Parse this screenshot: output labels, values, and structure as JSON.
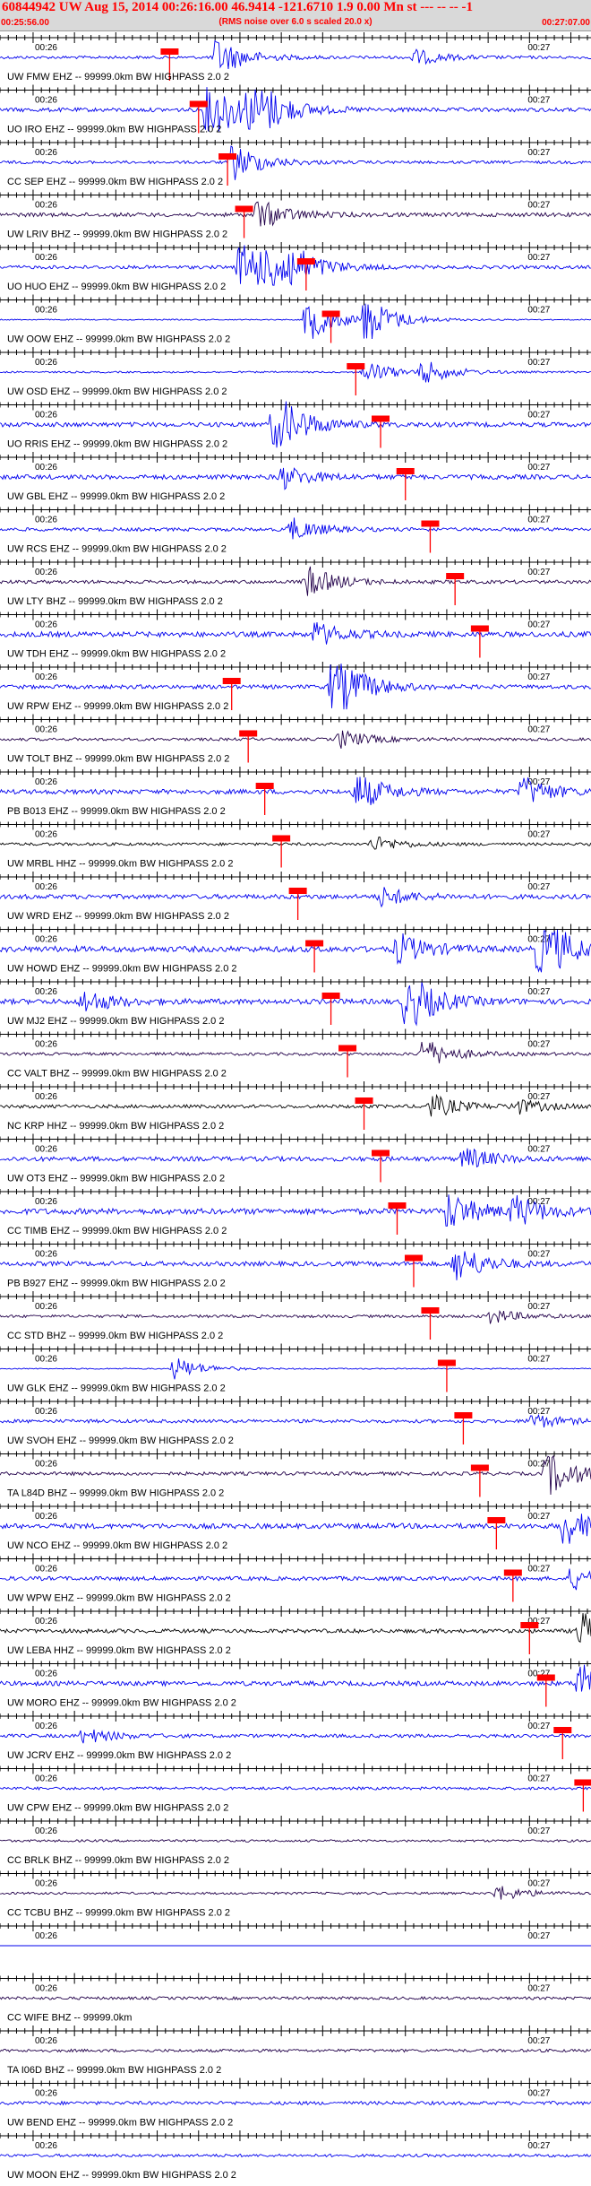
{
  "header": {
    "title": "60844942 UW Aug 15, 2014 00:26:16.00   46.9414 -121.6710  1.9 0.00 Mn st --- -- --  -1",
    "subtitle": "(RMS noise over 6.0 s scaled 20.0 x)",
    "start_time": "00:25:56.00",
    "end_time": "00:27:07.00"
  },
  "colors": {
    "trace_blue": "#0000ee",
    "trace_dark": "#22004a",
    "trace_black": "#000000",
    "pick_red": "#ff0000",
    "header_bg": "#d9d9d9"
  },
  "chart_data": {
    "type": "line",
    "title": "60844942 UW Aug 15, 2014 00:26:16.00   46.9414 -121.6710  1.9 0.00 Mn st --- -- --  -1",
    "subtitle": "(RMS noise over 6.0 s scaled 20.0 x)",
    "x_start": "00:25:56.00",
    "x_end": "00:27:07.00",
    "xlim_seconds": [
      0,
      71
    ],
    "minute_labels": [
      "00:26",
      "00:27"
    ],
    "grid": false,
    "traces": [
      {
        "label": "UW FMW EHZ -- 99999.0km BW  HIGHPASS  2.0  2",
        "color": "blue",
        "pick_s": 20.5,
        "amp": 0.5,
        "burst": [
          {
            "t": 26,
            "a": 2.5
          },
          {
            "t": 50,
            "a": 1.0
          }
        ]
      },
      {
        "label": "UO IRO EHZ -- 99999.0km BW  HIGHPASS  2.0  2",
        "color": "blue",
        "pick_s": 24.0,
        "amp": 0.7,
        "burst": [
          {
            "t": 25,
            "a": 5.0
          },
          {
            "t": 30,
            "a": 4.5
          }
        ]
      },
      {
        "label": "CC SEP EHZ -- 99999.0km BW  HIGHPASS  2.0  2",
        "color": "blue",
        "pick_s": 27.5,
        "amp": 0.5,
        "burst": [
          {
            "t": 28,
            "a": 2.5
          }
        ]
      },
      {
        "label": "UW LRIV BHZ -- 99999.0km BW  HIGHPASS  2.0  2",
        "color": "dark",
        "pick_s": 29.5,
        "amp": 0.7,
        "burst": [
          {
            "t": 31,
            "a": 2.0
          }
        ]
      },
      {
        "label": "UO HUO EHZ -- 99999.0km BW  HIGHPASS  2.0  2",
        "color": "blue",
        "pick_s": 37.0,
        "amp": 0.6,
        "burst": [
          {
            "t": 29,
            "a": 5.0
          },
          {
            "t": 33,
            "a": 4.5
          }
        ]
      },
      {
        "label": "UW OOW EHZ -- 99999.0km BW  HIGHPASS  2.0  2",
        "color": "blue",
        "pick_s": 40.0,
        "amp": 0.2,
        "burst": [
          {
            "t": 37,
            "a": 3.0
          },
          {
            "t": 44,
            "a": 3.0
          }
        ]
      },
      {
        "label": "UW OSD EHZ -- 99999.0km BW  HIGHPASS  2.0  2",
        "color": "blue",
        "pick_s": 43.0,
        "amp": 0.3,
        "burst": [
          {
            "t": 44,
            "a": 1.5
          },
          {
            "t": 51,
            "a": 1.5
          }
        ]
      },
      {
        "label": "UO RRIS EHZ -- 99999.0km BW  HIGHPASS  2.0  2",
        "color": "blue",
        "pick_s": 46.0,
        "amp": 0.8,
        "burst": [
          {
            "t": 33,
            "a": 4.5
          }
        ]
      },
      {
        "label": "UW GBL EHZ -- 99999.0km BW  HIGHPASS  2.0  2",
        "color": "blue",
        "pick_s": 49.0,
        "amp": 0.8,
        "burst": [
          {
            "t": 34,
            "a": 1.5
          }
        ]
      },
      {
        "label": "UW RCS EHZ -- 99999.0km BW  HIGHPASS  2.0  2",
        "color": "blue",
        "pick_s": 52.0,
        "amp": 0.6,
        "burst": [
          {
            "t": 35,
            "a": 1.5
          }
        ]
      },
      {
        "label": "UW LTY BHZ -- 99999.0km BW  HIGHPASS  2.0  2",
        "color": "dark",
        "pick_s": 55.0,
        "amp": 0.6,
        "burst": [
          {
            "t": 37,
            "a": 2.0
          }
        ]
      },
      {
        "label": "UW TDH EHZ -- 99999.0km BW  HIGHPASS  2.0  2",
        "color": "blue",
        "pick_s": 58.0,
        "amp": 0.9,
        "burst": [
          {
            "t": 38,
            "a": 1.5
          }
        ]
      },
      {
        "label": "UW RPW EHZ -- 99999.0km BW  HIGHPASS  2.0  2",
        "color": "blue",
        "pick_s": 28.0,
        "amp": 0.7,
        "burst": [
          {
            "t": 40,
            "a": 5.0
          }
        ]
      },
      {
        "label": "UW TOLT BHZ -- 99999.0km BW  HIGHPASS  2.0  2",
        "color": "dark",
        "pick_s": 30.0,
        "amp": 0.5,
        "burst": [
          {
            "t": 41,
            "a": 1.2
          }
        ]
      },
      {
        "label": "PB B013 EHZ -- 99999.0km BW  HIGHPASS  2.0  2",
        "color": "blue",
        "pick_s": 32.0,
        "amp": 0.8,
        "burst": [
          {
            "t": 43,
            "a": 2.5
          },
          {
            "t": 63,
            "a": 2.0
          }
        ]
      },
      {
        "label": "UW MRBL HHZ -- 99999.0km BW  HIGHPASS  2.0  2",
        "color": "black",
        "pick_s": 34.0,
        "amp": 0.5,
        "burst": [
          {
            "t": 45,
            "a": 1.0
          }
        ]
      },
      {
        "label": "UW WRD EHZ -- 99999.0km BW  HIGHPASS  2.0  2",
        "color": "blue",
        "pick_s": 36.0,
        "amp": 0.8,
        "burst": [
          {
            "t": 46,
            "a": 1.2
          }
        ]
      },
      {
        "label": "UW HOWD EHZ -- 99999.0km BW  HIGHPASS  2.0  2",
        "color": "blue",
        "pick_s": 38.0,
        "amp": 1.0,
        "burst": [
          {
            "t": 48,
            "a": 2.0
          },
          {
            "t": 65,
            "a": 5.0
          }
        ]
      },
      {
        "label": "UW MJ2 EHZ -- 99999.0km BW  HIGHPASS  2.0  2",
        "color": "blue",
        "pick_s": 40.0,
        "amp": 0.9,
        "burst": [
          {
            "t": 49,
            "a": 4.0
          },
          {
            "t": 10,
            "a": 1.5
          }
        ]
      },
      {
        "label": "CC VALT BHZ -- 99999.0km BW  HIGHPASS  2.0  2",
        "color": "dark",
        "pick_s": 42.0,
        "amp": 0.5,
        "burst": [
          {
            "t": 51,
            "a": 2.0
          }
        ]
      },
      {
        "label": "NC KRP HHZ -- 99999.0km BW  HIGHPASS  2.0  2",
        "color": "black",
        "pick_s": 44.0,
        "amp": 0.6,
        "burst": [
          {
            "t": 52,
            "a": 1.5
          },
          {
            "t": 62,
            "a": 1.0
          }
        ]
      },
      {
        "label": "UW OT3 EHZ -- 99999.0km BW  HIGHPASS  2.0  2",
        "color": "blue",
        "pick_s": 46.0,
        "amp": 0.8,
        "burst": [
          {
            "t": 56,
            "a": 1.5
          }
        ]
      },
      {
        "label": "CC TIMB EHZ -- 99999.0km BW  HIGHPASS  2.0  2",
        "color": "blue",
        "pick_s": 48.0,
        "amp": 1.0,
        "burst": [
          {
            "t": 54,
            "a": 2.5
          },
          {
            "t": 62,
            "a": 2.0
          }
        ]
      },
      {
        "label": "PB B927 EHZ -- 99999.0km BW  HIGHPASS  2.0  2",
        "color": "blue",
        "pick_s": 50.0,
        "amp": 0.8,
        "burst": [
          {
            "t": 55,
            "a": 2.5
          }
        ]
      },
      {
        "label": "CC STD BHZ -- 99999.0km BW  HIGHPASS  2.0  2",
        "color": "dark",
        "pick_s": 52.0,
        "amp": 0.5,
        "burst": [
          {
            "t": 59,
            "a": 1.0
          }
        ]
      },
      {
        "label": "UW GLK EHZ -- 99999.0km BW  HIGHPASS  2.0  2",
        "color": "blue",
        "pick_s": 54.0,
        "amp": 0.2,
        "burst": [
          {
            "t": 21,
            "a": 1.5
          }
        ]
      },
      {
        "label": "UW SVOH EHZ -- 99999.0km BW  HIGHPASS  2.0  2",
        "color": "blue",
        "pick_s": 56.0,
        "amp": 0.6,
        "burst": [
          {
            "t": 64,
            "a": 1.0
          }
        ]
      },
      {
        "label": "TA L84D BHZ -- 99999.0km BW  HIGHPASS  2.0  2",
        "color": "dark",
        "pick_s": 58.0,
        "amp": 0.6,
        "burst": [
          {
            "t": 66,
            "a": 3.0
          }
        ]
      },
      {
        "label": "UW NCO EHZ -- 99999.0km BW  HIGHPASS  2.0  2",
        "color": "blue",
        "pick_s": 60.0,
        "amp": 0.9,
        "burst": [
          {
            "t": 68,
            "a": 2.5
          }
        ]
      },
      {
        "label": "UW WPW EHZ -- 99999.0km BW  HIGHPASS  2.0  2",
        "color": "blue",
        "pick_s": 62.0,
        "amp": 0.7,
        "burst": [
          {
            "t": 69,
            "a": 1.5
          }
        ]
      },
      {
        "label": "UW LEBA HHZ -- 99999.0km BW  HIGHPASS  2.0  2",
        "color": "black",
        "pick_s": 64.0,
        "amp": 0.7,
        "burst": [
          {
            "t": 70,
            "a": 2.5
          }
        ]
      },
      {
        "label": "UW MORO EHZ -- 99999.0km BW  HIGHPASS  2.0  2",
        "color": "blue",
        "pick_s": 66.0,
        "amp": 0.8,
        "burst": [
          {
            "t": 70,
            "a": 5.0
          }
        ]
      },
      {
        "label": "UW JCRV EHZ -- 99999.0km BW  HIGHPASS  2.0  2",
        "color": "blue",
        "pick_s": 68.0,
        "amp": 0.6,
        "burst": [
          {
            "t": 10,
            "a": 1.0
          }
        ]
      },
      {
        "label": "UW CPW EHZ -- 99999.0km BW  HIGHPASS  2.0  2",
        "color": "blue",
        "pick_s": 70.5,
        "amp": 0.5,
        "burst": []
      },
      {
        "label": "CC BRLK BHZ -- 99999.0km BW  HIGHPASS  2.0  2",
        "color": "dark",
        "pick_s": null,
        "amp": 0.4,
        "burst": []
      },
      {
        "label": "CC TCBU BHZ -- 99999.0km BW  HIGHPASS  2.0  2",
        "color": "dark",
        "pick_s": null,
        "amp": 0.4,
        "burst": [
          {
            "t": 60,
            "a": 1.0
          }
        ]
      },
      {
        "label": "",
        "color": "blue",
        "pick_s": null,
        "amp": 0.0,
        "burst": []
      },
      {
        "label": "CC WIFE BHZ -- 99999.0km",
        "color": "dark",
        "pick_s": null,
        "amp": 0.5,
        "burst": []
      },
      {
        "label": "TA I06D BHZ -- 99999.0km BW  HIGHPASS  2.0  2",
        "color": "dark",
        "pick_s": null,
        "amp": 0.5,
        "burst": []
      },
      {
        "label": "UW BEND EHZ -- 99999.0km BW  HIGHPASS  2.0  2",
        "color": "blue",
        "pick_s": null,
        "amp": 0.6,
        "burst": []
      },
      {
        "label": "UW MOON EHZ -- 99999.0km BW  HIGHPASS  2.0  2",
        "color": "blue",
        "pick_s": null,
        "amp": 0.5,
        "burst": []
      }
    ]
  }
}
